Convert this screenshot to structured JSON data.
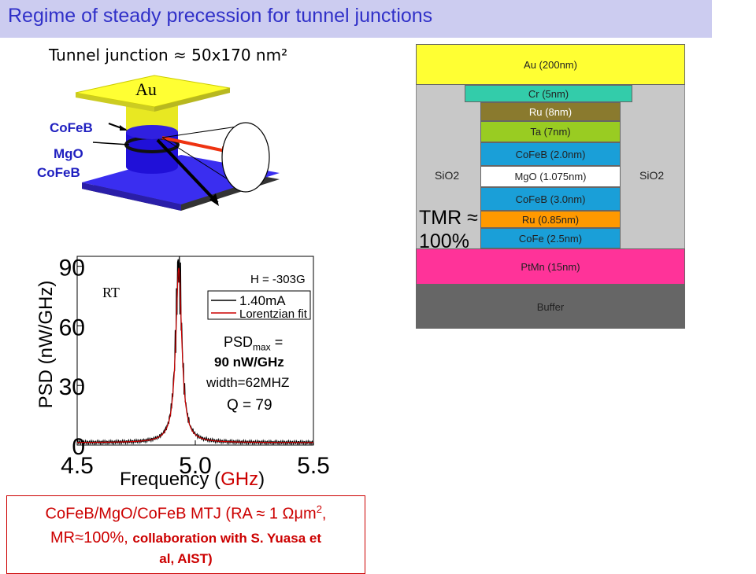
{
  "title": "Regime of steady precession for tunnel junctions",
  "junction": {
    "caption": "Tunnel junction ≈ 50x170 nm²",
    "top_label": "Au",
    "labels": [
      "CoFeB",
      "MgO",
      "CoFeB"
    ]
  },
  "stack": {
    "layers": [
      {
        "label": "Au (200nm)",
        "color": "#ffff33"
      },
      {
        "label": "Cr (5nm)",
        "color": "#33ccaa"
      },
      {
        "label": "Ru (8nm)",
        "color": "#8a7a2e"
      },
      {
        "label": "Ta (7nm)",
        "color": "#99cc22"
      },
      {
        "label": "CoFeB (2.0nm)",
        "color": "#1a9fd8"
      },
      {
        "label": "MgO (1.075nm)",
        "color": "#ffffff"
      },
      {
        "label": "CoFeB (3.0nm)",
        "color": "#1a9fd8"
      },
      {
        "label": "Ru (0.85nm)",
        "color": "#ff9900"
      },
      {
        "label": "CoFe (2.5nm)",
        "color": "#1a9fd8"
      },
      {
        "label": "PtMn (15nm)",
        "color": "#ff3399"
      },
      {
        "label": "Buffer",
        "color": "#666666"
      }
    ],
    "sio2_left": "SiO2",
    "sio2_right": "SiO2",
    "tmr_line1": "TMR ≈",
    "tmr_line2": "100%"
  },
  "chart_data": {
    "type": "line",
    "xlabel_main": "Frequency (",
    "xlabel_unit": "GHz",
    "xlabel_end": ")",
    "ylabel": "PSD (nW/GHz)",
    "xlim": [
      4.5,
      5.5
    ],
    "ylim": [
      0,
      95
    ],
    "xticks": [
      "4.5",
      "5.0",
      "5.5"
    ],
    "yticks": [
      "0",
      "30",
      "60",
      "90"
    ],
    "xtick_values": [
      4.5,
      5.0,
      5.5
    ],
    "ytick_values": [
      0,
      30,
      60,
      90
    ],
    "legend": [
      "1.40mA",
      "Lorentzian fit"
    ],
    "series": [
      {
        "name": "1.40mA",
        "color": "#000000",
        "peak_center": 4.93,
        "peak_value": 93,
        "linewidth_ghz": 0.031
      },
      {
        "name": "Lorentzian fit",
        "color": "#cc0000",
        "peak_center": 4.93,
        "peak_value": 88,
        "linewidth_ghz": 0.031
      }
    ],
    "annotations": {
      "rt": "RT",
      "field": "H = -303G",
      "psd_prefix": "PSD",
      "psd_sub": "max",
      "psd_suffix": " =",
      "psd_value": "90 nW/GHz",
      "width": "width=62MHZ",
      "q": "Q = 79"
    }
  },
  "note": {
    "line1_a": "CoFeB/MgO/CoFeB MTJ (RA ≈ 1 Ωμm",
    "line1_sup": "2",
    "line1_b": ",",
    "line2_a": "MR≈100%, ",
    "line2_b": "collaboration with S. Yuasa et",
    "line3": "al, AIST)"
  }
}
